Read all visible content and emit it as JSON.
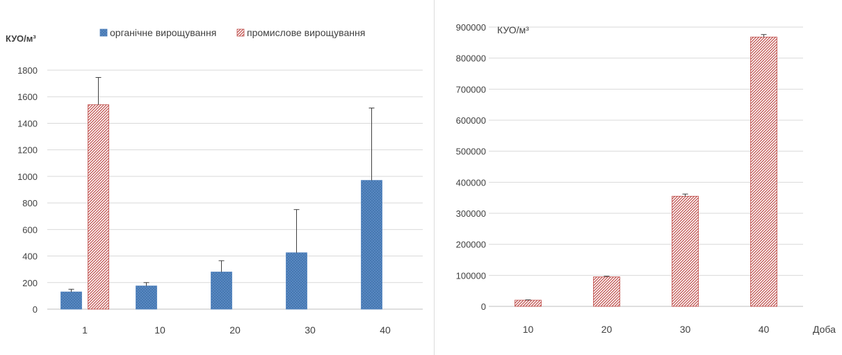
{
  "chart_data": [
    {
      "type": "bar",
      "title": "",
      "ylabel": "КУО/м³",
      "xlabel": "",
      "categories": [
        "1",
        "10",
        "20",
        "30",
        "40"
      ],
      "ylim": [
        0,
        1800
      ],
      "yticks": [
        "0",
        "200",
        "400",
        "600",
        "800",
        "1000",
        "1200",
        "1400",
        "1600",
        "1800"
      ],
      "grid": true,
      "legend_position": "top",
      "series": [
        {
          "name": "органічне вирощування",
          "color": "#4f81bd",
          "values": [
            130,
            175,
            280,
            425,
            970
          ],
          "error_upper": [
            150,
            200,
            365,
            750,
            1515
          ]
        },
        {
          "name": "промислове вирощування",
          "color": "#c0504d",
          "values": [
            1540,
            null,
            null,
            null,
            null
          ],
          "error_upper": [
            1745,
            null,
            null,
            null,
            null
          ]
        }
      ]
    },
    {
      "type": "bar",
      "title": "",
      "ylabel": "КУО/м³",
      "xlabel": "Доба",
      "categories": [
        "10",
        "20",
        "30",
        "40"
      ],
      "ylim": [
        0,
        900000
      ],
      "yticks": [
        "0",
        "100000",
        "200000",
        "300000",
        "400000",
        "500000",
        "600000",
        "700000",
        "800000",
        "900000"
      ],
      "grid": true,
      "series": [
        {
          "color": "#c0504d",
          "values": [
            20000,
            95000,
            355000,
            868000
          ],
          "error_upper": [
            21000,
            97000,
            362000,
            876000
          ]
        }
      ]
    }
  ]
}
